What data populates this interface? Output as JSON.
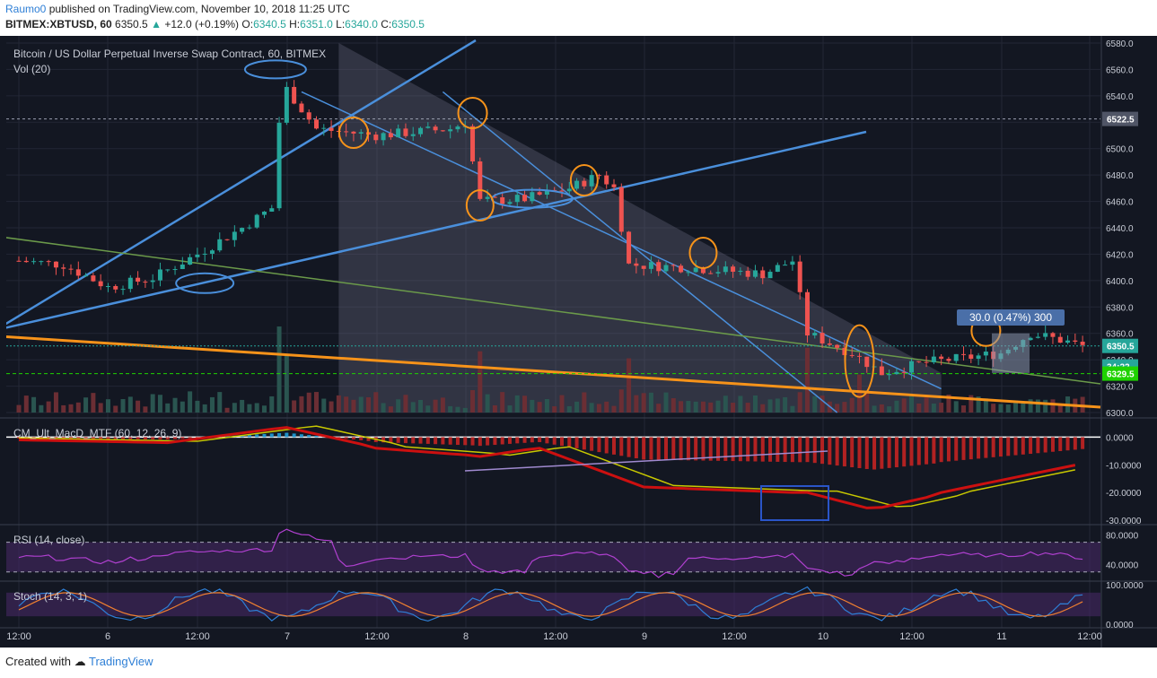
{
  "header": {
    "author": "Raumo0",
    "published_text": "published on TradingView.com, November 10, 2018 11:25 UTC",
    "symbol": "BITMEX:XBTUSD, 60",
    "last": "6350.5",
    "change_arrow": "▲",
    "change": "+12.0 (+0.19%)",
    "o_label": "O:",
    "o": "6340.5",
    "h_label": "H:",
    "h": "6351.0",
    "l_label": "L:",
    "l": "6340.0",
    "c_label": "C:",
    "c": "6350.5"
  },
  "footer": {
    "created_with": "Created with",
    "brand": "TradingView"
  },
  "colors": {
    "background": "#131722",
    "up": "#26a69a",
    "down": "#ef5350",
    "channel_blue": "#4a8fdb",
    "support_orange": "#f7931a",
    "ma_green": "#6b9a4a",
    "annotation_orange": "#f7931a"
  },
  "chart_data": [
    {
      "type": "candlestick",
      "title": "Bitcoin / US Dollar Perpetual Inverse Swap Contract, 60, BITMEX",
      "volume_label": "Vol (20)",
      "ylim": [
        6300,
        6580
      ],
      "y_ticks": [
        "6580.0",
        "6560.0",
        "6540.0",
        "6520.0",
        "6500.0",
        "6480.0",
        "6460.0",
        "6440.0",
        "6420.0",
        "6400.0",
        "6380.0",
        "6360.0",
        "6340.0",
        "6320.0",
        "6300.0"
      ],
      "x_ticks": [
        "12:00",
        "6",
        "12:00",
        "7",
        "12:00",
        "8",
        "12:00",
        "9",
        "12:00",
        "10",
        "12:00",
        "11",
        "12:00"
      ],
      "price_labels": [
        {
          "text": "6522.5",
          "role": "horizontal-line"
        },
        {
          "text": "6350.5",
          "role": "last-price"
        },
        {
          "text": "34:22",
          "role": "countdown"
        },
        {
          "text": "6329.5",
          "role": "green-line"
        }
      ],
      "measure_label": "30.0 (0.47%) 300",
      "ohlc_overview": [
        {
          "x": "Nov 5 12:00",
          "close": 6415
        },
        {
          "x": "Nov 6 00:00",
          "close": 6395
        },
        {
          "x": "Nov 6 12:00",
          "close": 6420
        },
        {
          "x": "Nov 6 22:00",
          "close": 6455
        },
        {
          "x": "Nov 7 00:00",
          "close": 6540
        },
        {
          "x": "Nov 7 12:00",
          "close": 6510
        },
        {
          "x": "Nov 8 00:00",
          "close": 6515
        },
        {
          "x": "Nov 8 04:00",
          "close": 6460
        },
        {
          "x": "Nov 8 12:00",
          "close": 6470
        },
        {
          "x": "Nov 8 18:00",
          "close": 6410
        },
        {
          "x": "Nov 9 06:00",
          "close": 6405
        },
        {
          "x": "Nov 9 10:00",
          "close": 6360
        },
        {
          "x": "Nov 9 18:00",
          "close": 6335
        },
        {
          "x": "Nov 10 00:00",
          "close": 6340
        },
        {
          "x": "Nov 10 06:00",
          "close": 6360
        },
        {
          "x": "Nov 10 11:00",
          "close": 6350.5
        }
      ]
    },
    {
      "type": "line",
      "title": "CM_Ult_MacD_MTF (60, 12, 26, 9)",
      "ylim": [
        -30,
        5
      ],
      "y_ticks": [
        "0.0000",
        "-10.0000",
        "-20.0000",
        "-30.0000"
      ]
    },
    {
      "type": "line",
      "title": "RSI (14, close)",
      "ylim": [
        20,
        90
      ],
      "y_ticks": [
        "80.0000",
        "40.0000"
      ]
    },
    {
      "type": "line",
      "title": "Stoch (14, 3, 1)",
      "ylim": [
        0,
        100
      ],
      "y_ticks": [
        "100.0000",
        "0.0000"
      ]
    }
  ]
}
